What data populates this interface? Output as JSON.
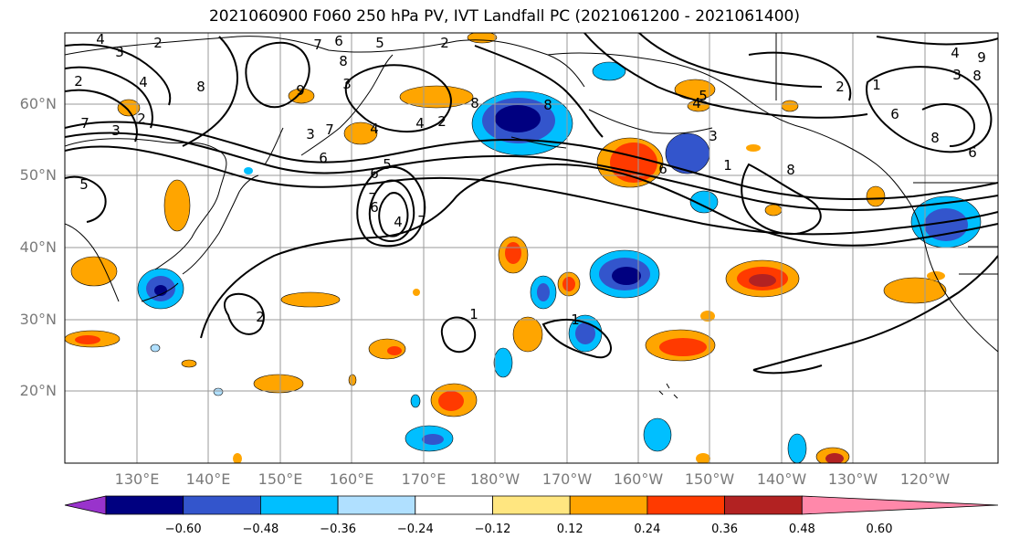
{
  "title": "2021060900 F060 250 hPa PV, IVT Landfall PC (2021061200 - 2021061400)",
  "map": {
    "lat_labels": [
      "60°N",
      "50°N",
      "40°N",
      "30°N",
      "20°N"
    ],
    "lon_labels": [
      "130°E",
      "140°E",
      "150°E",
      "160°E",
      "170°E",
      "180°W",
      "170°W",
      "160°W",
      "150°W",
      "140°W",
      "130°W",
      "120°W"
    ]
  },
  "colorbar": {
    "tick_labels": [
      "−0.60",
      "−0.48",
      "−0.36",
      "−0.24",
      "−0.12",
      "0.12",
      "0.24",
      "0.36",
      "0.48",
      "0.60"
    ],
    "colors": [
      "#9933cc",
      "#000080",
      "#3355cc",
      "#00bfff",
      "#b0e0ff",
      "#ffffff",
      "#ffe680",
      "#ffa500",
      "#ff3a00",
      "#b22222",
      "#ff88aa"
    ]
  },
  "contour_labels": [
    "4",
    "3",
    "2",
    "6",
    "7",
    "8",
    "5",
    "2",
    "9",
    "3",
    "8",
    "4",
    "3",
    "2",
    "3",
    "7",
    "2",
    "6",
    "4",
    "5",
    "7",
    "6",
    "4",
    "7",
    "8",
    "8",
    "5",
    "4",
    "3",
    "6",
    "8",
    "1",
    "8",
    "2",
    "8",
    "9",
    "6",
    "3",
    "6",
    "4",
    "2",
    "5",
    "7",
    "4",
    "6",
    "2",
    "1",
    "1",
    "1"
  ]
}
